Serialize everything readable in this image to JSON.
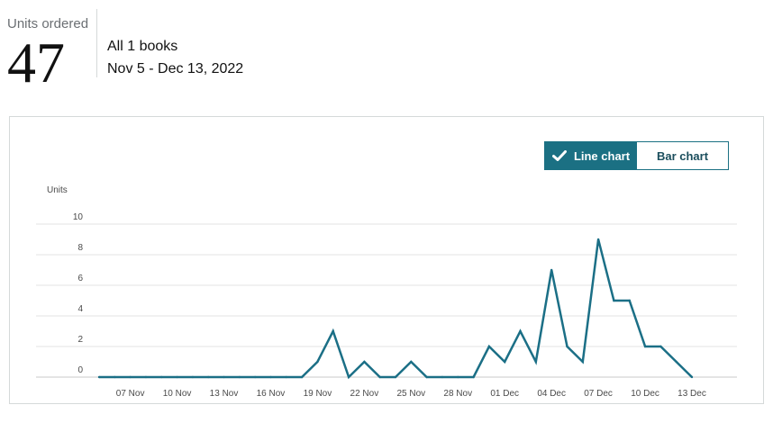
{
  "summary": {
    "metric_label": "Units ordered",
    "metric_value": "47",
    "scope": "All 1 books",
    "date_range": "Nov 5 - Dec 13, 2022"
  },
  "toggle": {
    "line_label": "Line chart",
    "bar_label": "Bar chart",
    "active": "line"
  },
  "colors": {
    "line": "#1b6f86",
    "accent": "#1b7083"
  },
  "chart_data": {
    "type": "line",
    "ylabel": "Units",
    "xlabel": "",
    "ylim": [
      0,
      10
    ],
    "yticks": [
      0,
      2,
      4,
      6,
      8,
      10
    ],
    "grid": true,
    "x_tick_labels": [
      "07 Nov",
      "10 Nov",
      "13 Nov",
      "16 Nov",
      "19 Nov",
      "22 Nov",
      "25 Nov",
      "28 Nov",
      "01 Dec",
      "04 Dec",
      "07 Dec",
      "10 Dec",
      "13 Dec"
    ],
    "x": [
      "2022-11-05",
      "2022-11-06",
      "2022-11-07",
      "2022-11-08",
      "2022-11-09",
      "2022-11-10",
      "2022-11-11",
      "2022-11-12",
      "2022-11-13",
      "2022-11-14",
      "2022-11-15",
      "2022-11-16",
      "2022-11-17",
      "2022-11-18",
      "2022-11-19",
      "2022-11-20",
      "2022-11-21",
      "2022-11-22",
      "2022-11-23",
      "2022-11-24",
      "2022-11-25",
      "2022-11-26",
      "2022-11-27",
      "2022-11-28",
      "2022-11-29",
      "2022-11-30",
      "2022-12-01",
      "2022-12-02",
      "2022-12-03",
      "2022-12-04",
      "2022-12-05",
      "2022-12-06",
      "2022-12-07",
      "2022-12-08",
      "2022-12-09",
      "2022-12-10",
      "2022-12-11",
      "2022-12-12",
      "2022-12-13"
    ],
    "values": [
      0,
      0,
      0,
      0,
      0,
      0,
      0,
      0,
      0,
      0,
      0,
      0,
      0,
      0,
      1,
      3,
      0,
      1,
      0,
      0,
      1,
      0,
      0,
      0,
      0,
      2,
      1,
      3,
      1,
      7,
      2,
      1,
      9,
      5,
      5,
      2,
      2,
      1,
      0
    ]
  }
}
